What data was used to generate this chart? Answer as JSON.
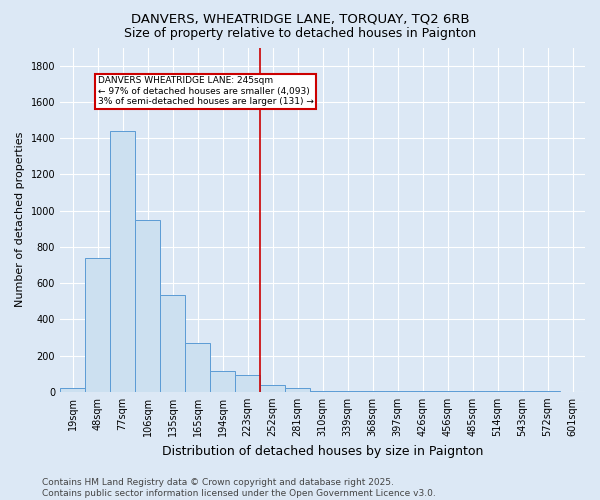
{
  "title": "DANVERS, WHEATRIDGE LANE, TORQUAY, TQ2 6RB",
  "subtitle": "Size of property relative to detached houses in Paignton",
  "xlabel": "Distribution of detached houses by size in Paignton",
  "ylabel": "Number of detached properties",
  "categories": [
    "19sqm",
    "48sqm",
    "77sqm",
    "106sqm",
    "135sqm",
    "165sqm",
    "194sqm",
    "223sqm",
    "252sqm",
    "281sqm",
    "310sqm",
    "339sqm",
    "368sqm",
    "397sqm",
    "426sqm",
    "456sqm",
    "485sqm",
    "514sqm",
    "543sqm",
    "572sqm",
    "601sqm"
  ],
  "values": [
    20,
    740,
    1440,
    950,
    535,
    270,
    115,
    90,
    40,
    20,
    5,
    3,
    3,
    3,
    3,
    3,
    3,
    3,
    3,
    2,
    1
  ],
  "bar_color": "#cce0f0",
  "bar_edge_color": "#5b9bd5",
  "red_line_x": 7.5,
  "annotation_line1": "DANVERS WHEATRIDGE LANE: 245sqm",
  "annotation_line2": "← 97% of detached houses are smaller (4,093)",
  "annotation_line3": "3% of semi-detached houses are larger (131) →",
  "annotation_box_color": "#ffffff",
  "annotation_border_color": "#cc0000",
  "vline_color": "#cc0000",
  "background_color": "#dce8f5",
  "plot_bg_color": "#dce8f5",
  "grid_color": "#ffffff",
  "ylim": [
    0,
    1900
  ],
  "yticks": [
    0,
    200,
    400,
    600,
    800,
    1000,
    1200,
    1400,
    1600,
    1800
  ],
  "footer_line1": "Contains HM Land Registry data © Crown copyright and database right 2025.",
  "footer_line2": "Contains public sector information licensed under the Open Government Licence v3.0.",
  "title_fontsize": 9.5,
  "subtitle_fontsize": 9,
  "tick_fontsize": 7,
  "ylabel_fontsize": 8,
  "xlabel_fontsize": 9,
  "footer_fontsize": 6.5
}
